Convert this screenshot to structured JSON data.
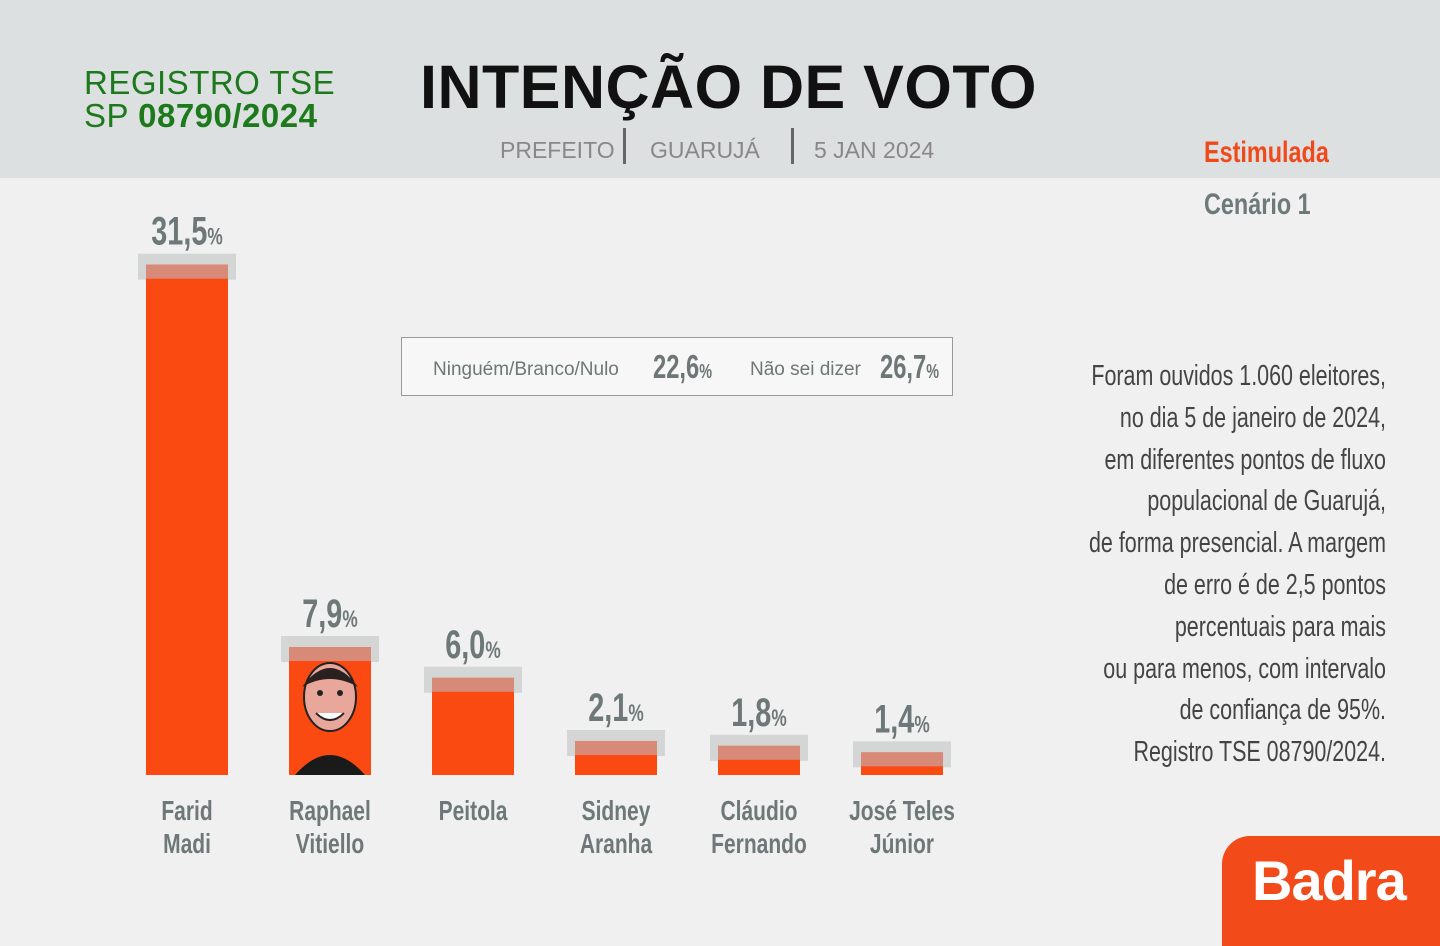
{
  "header": {
    "registro_line1": "REGISTRO TSE",
    "registro_line2_prefix": "SP",
    "registro_line2_number": "08790/2024",
    "title": "INTENÇÃO DE VOTO",
    "subtitle": {
      "cargo": "PREFEITO",
      "city": "GUARUJÁ",
      "date": "5 JAN 2024"
    },
    "type": "Estimulada",
    "scenario": "Cenário 1"
  },
  "others": {
    "ninguem_label": "Ninguém/Branco/Nulo",
    "ninguem_value": "22,6",
    "nao_sei_label": "Não sei dizer",
    "nao_sei_value": "26,7",
    "percent_symbol": "%"
  },
  "note_lines": [
    "Foram ouvidos 1.060 eleitores,",
    "no dia 5 de janeiro de 2024,",
    "em diferentes pontos de fluxo",
    "populacional de Guarujá,",
    "de forma presencial. A margem",
    "de erro é de 2,5 pontos",
    "percentuais para mais",
    "ou para menos,  com intervalo",
    "de confiança de 95%.",
    "Registro TSE 08790/2024."
  ],
  "brand": "Badra",
  "colors": {
    "bar": "#fa4a12",
    "bar_cap": "#d88a78",
    "cap_shade": "#d3d6d5",
    "value_text": "#6e7878",
    "header_bg": "#dde0e0",
    "accent": "#f04a1c",
    "registro_green": "#1c7a1c"
  },
  "chart_data": {
    "type": "bar",
    "unit": "%",
    "categories": [
      [
        "Farid",
        "Madi"
      ],
      [
        "Raphael",
        "Vitiello"
      ],
      [
        "Peitola"
      ],
      [
        "Sidney",
        "Aranha"
      ],
      [
        "Cláudio",
        "Fernando"
      ],
      [
        "José Teles",
        "Júnior"
      ]
    ],
    "values": [
      31.5,
      7.9,
      6.0,
      2.1,
      1.8,
      1.4
    ],
    "value_labels": [
      "31,5",
      "7,9",
      "6,0",
      "2,1",
      "1,8",
      "1,4"
    ],
    "photo_on": [
      "Raphael Vitiello"
    ]
  }
}
